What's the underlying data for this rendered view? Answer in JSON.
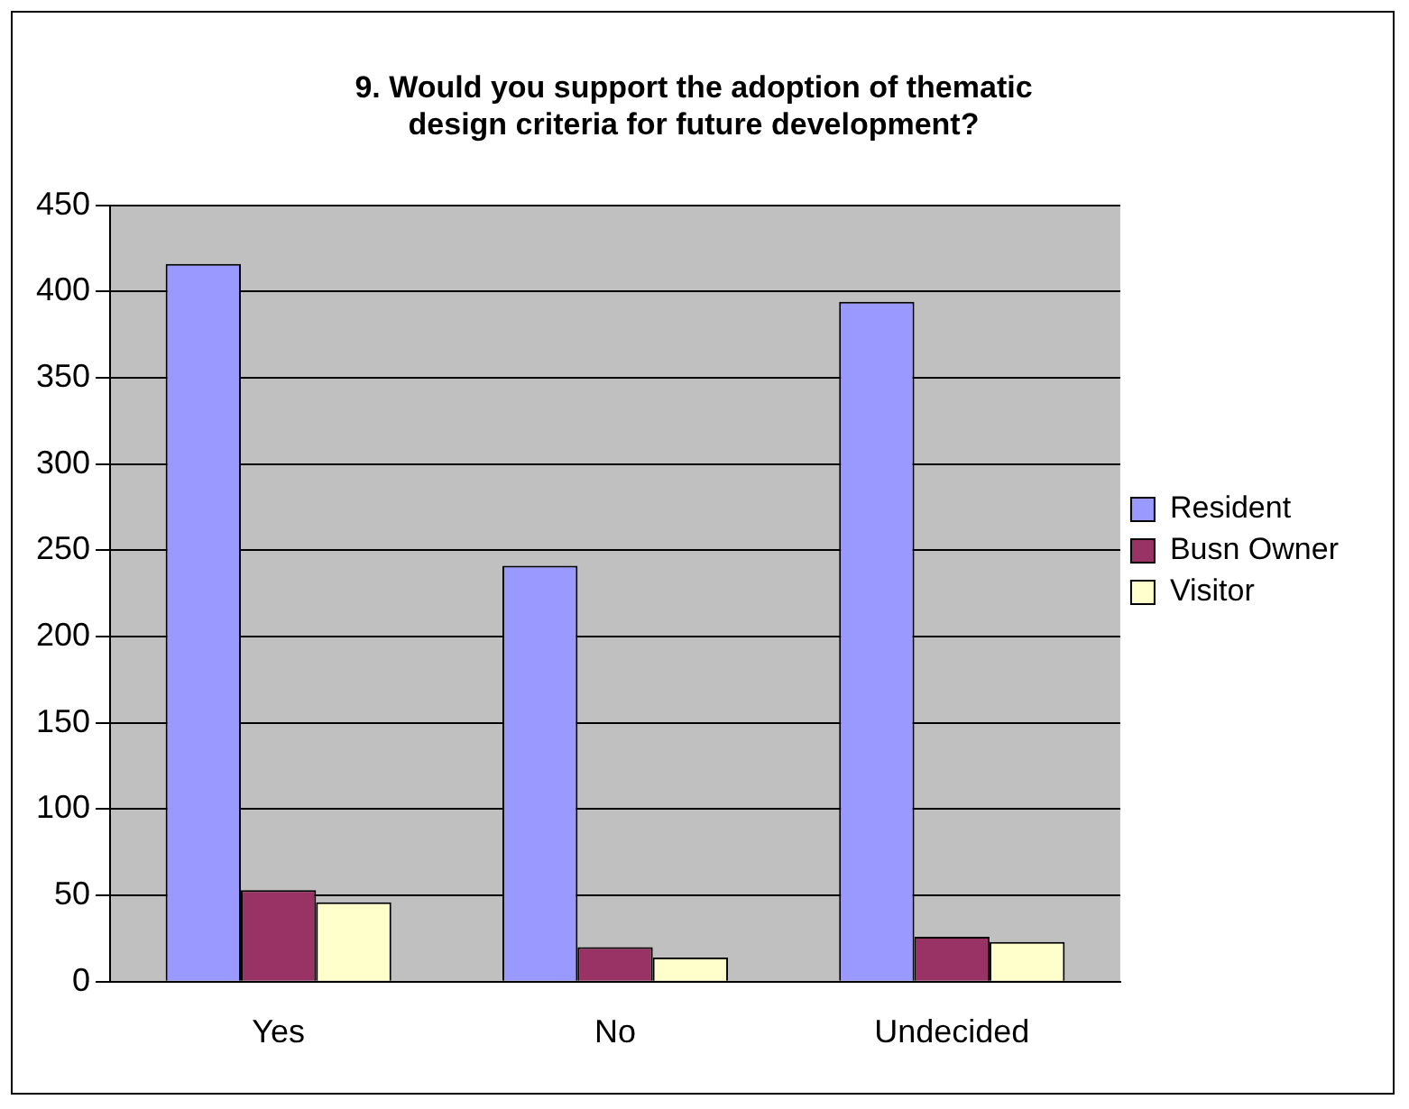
{
  "chart_data": {
    "type": "bar",
    "title": "9. Would you support the adoption of thematic design criteria for future development?",
    "categories": [
      "Yes",
      "No",
      "Undecided"
    ],
    "series": [
      {
        "name": "Resident",
        "color": "#9999ff",
        "values": [
          416,
          241,
          394
        ]
      },
      {
        "name": "Busn Owner",
        "color": "#993366",
        "values": [
          53,
          20,
          26
        ]
      },
      {
        "name": "Visitor",
        "color": "#ffffcc",
        "values": [
          46,
          14,
          23
        ]
      }
    ],
    "ylim": [
      0,
      450
    ],
    "yticks": [
      0,
      50,
      100,
      150,
      200,
      250,
      300,
      350,
      400,
      450
    ],
    "grid": "y",
    "legend": "right"
  }
}
